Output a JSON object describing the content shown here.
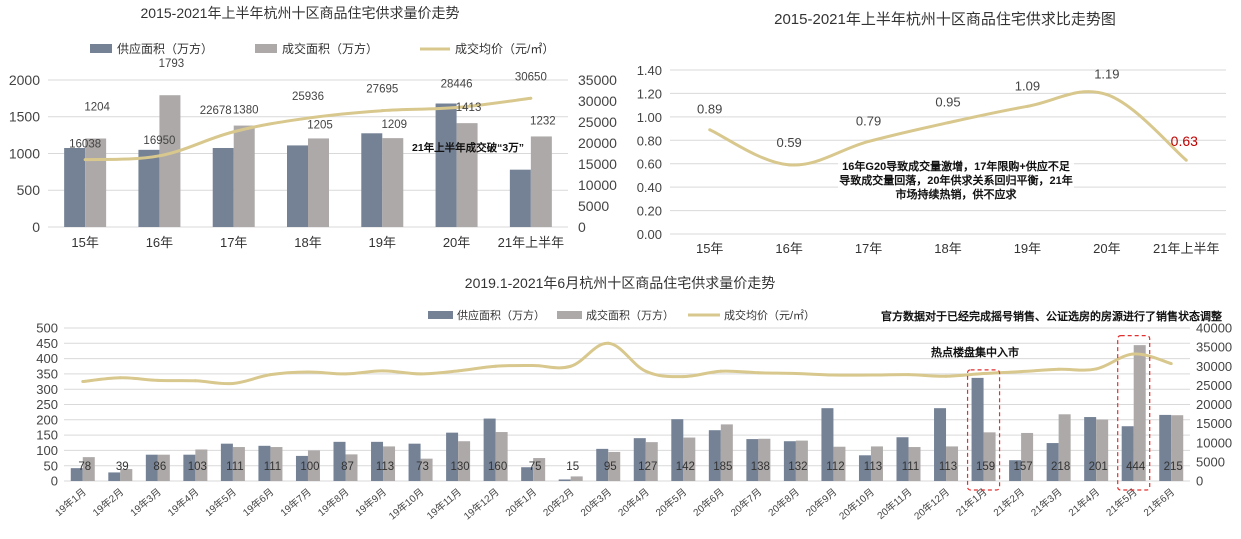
{
  "colors": {
    "supply": "#758296",
    "deal": "#ADA9A8",
    "price": "#D8C88E",
    "grid": "#D9D9D9",
    "highlight": "#C00000",
    "box": "#E03030"
  },
  "chart_data": [
    {
      "type": "bar",
      "title": "2015-2021年上半年杭州十区商品住宅供求量价走势",
      "categories": [
        "15年",
        "16年",
        "17年",
        "18年",
        "19年",
        "20年",
        "21年上半年"
      ],
      "series": [
        {
          "name": "供应面积（万方）",
          "type": "bar",
          "axis": "left",
          "values": [
            1075,
            1050,
            1075,
            1110,
            1275,
            1680,
            780
          ]
        },
        {
          "name": "成交面积（万方）",
          "type": "bar",
          "axis": "left",
          "values": [
            1204,
            1793,
            1380,
            1205,
            1209,
            1413,
            1232
          ],
          "labels": [
            "1204",
            "1793",
            "1380",
            "1205",
            "1209",
            "1413",
            "1232"
          ]
        },
        {
          "name": "成交均价（元/㎡）",
          "type": "line",
          "axis": "right",
          "values": [
            16038,
            16950,
            22678,
            25936,
            27695,
            28446,
            30650
          ],
          "labels": [
            "16038",
            "16950",
            "22678",
            "25936",
            "27695",
            "28446",
            "30650"
          ]
        }
      ],
      "ylim": [
        0,
        2000
      ],
      "yticks": [
        "0",
        "500",
        "1000",
        "1500",
        "2000"
      ],
      "y2lim": [
        0,
        35000
      ],
      "y2ticks": [
        "0",
        "5000",
        "10000",
        "15000",
        "20000",
        "25000",
        "30000",
        "35000"
      ],
      "grid": true,
      "legend": "top",
      "annotation": "21年上半年成交破“3万”"
    },
    {
      "type": "line",
      "title": "2015-2021年上半年杭州十区商品住宅供求比走势图",
      "categories": [
        "15年",
        "16年",
        "17年",
        "18年",
        "19年",
        "20年",
        "21年上半年"
      ],
      "values": [
        0.89,
        0.59,
        0.79,
        0.95,
        1.09,
        1.19,
        0.63
      ],
      "labels": [
        "0.89",
        "0.59",
        "0.79",
        "0.95",
        "1.09",
        "1.19",
        "0.63"
      ],
      "ylim": [
        0,
        1.4
      ],
      "yticks": [
        "0.00",
        "0.20",
        "0.40",
        "0.60",
        "0.80",
        "1.00",
        "1.20",
        "1.40"
      ],
      "grid": true,
      "annotation": "16年G20导致成交量激增，17年限购+供应不足导致成交量回落，20年供求关系回归平衡，21年市场持续热销，供不应求"
    },
    {
      "type": "bar",
      "title": "2019.1-2021年6月杭州十区商品住宅供求量价走势",
      "categories": [
        "19年1月",
        "19年2月",
        "19年3月",
        "19年4月",
        "19年5月",
        "19年6月",
        "19年7月",
        "19年8月",
        "19年9月",
        "19年10月",
        "19年11月",
        "19年12月",
        "20年1月",
        "20年2月",
        "20年3月",
        "20年4月",
        "20年5月",
        "20年6月",
        "20年7月",
        "20年8月",
        "20年9月",
        "20年10月",
        "20年11月",
        "20年12月",
        "21年1月",
        "21年2月",
        "21年3月",
        "21年4月",
        "21年5月",
        "21年6月"
      ],
      "series": [
        {
          "name": "供应面积（万方）",
          "type": "bar",
          "axis": "left",
          "values": [
            42,
            28,
            86,
            86,
            122,
            115,
            82,
            128,
            128,
            122,
            158,
            204,
            45,
            5,
            105,
            140,
            202,
            166,
            137,
            130,
            238,
            84,
            143,
            238,
            337,
            68,
            124,
            209,
            179,
            216
          ]
        },
        {
          "name": "成交面积（万方）",
          "type": "bar",
          "axis": "left",
          "values": [
            78,
            39,
            86,
            103,
            111,
            111,
            100,
            87,
            113,
            73,
            130,
            160,
            75,
            15,
            95,
            127,
            142,
            185,
            138,
            132,
            112,
            113,
            111,
            113,
            159,
            157,
            218,
            201,
            444,
            215
          ],
          "labels": [
            "78",
            "39",
            "86",
            "103",
            "111",
            "111",
            "100",
            "87",
            "113",
            "73",
            "130",
            "160",
            "75",
            "15",
            "95",
            "127",
            "142",
            "185",
            "138",
            "132",
            "112",
            "113",
            "111",
            "113",
            "159",
            "157",
            "218",
            "201",
            "444",
            "215"
          ]
        },
        {
          "name": "成交均价（元/㎡）",
          "type": "line",
          "axis": "right",
          "values": [
            26000,
            27000,
            26300,
            26200,
            25500,
            27800,
            28500,
            28000,
            28800,
            28000,
            28800,
            30000,
            30200,
            30000,
            36000,
            28700,
            27300,
            28700,
            28300,
            28100,
            27700,
            27700,
            27800,
            27400,
            28100,
            28600,
            29200,
            29300,
            33200,
            30700
          ]
        }
      ],
      "ylim": [
        0,
        500
      ],
      "yticks": [
        "0",
        "50",
        "100",
        "150",
        "200",
        "250",
        "300",
        "350",
        "400",
        "450",
        "500"
      ],
      "y2lim": [
        0,
        40000
      ],
      "y2ticks": [
        "0",
        "5000",
        "10000",
        "15000",
        "20000",
        "25000",
        "30000",
        "35000",
        "40000"
      ],
      "grid": true,
      "legend": "top",
      "annotations": [
        "热点楼盘集中入市",
        "官方数据对于已经完成摇号销售、公证选房的房源进行了销售状态调整"
      ],
      "highlighted_categories": [
        "21年1月",
        "21年5月"
      ]
    }
  ]
}
